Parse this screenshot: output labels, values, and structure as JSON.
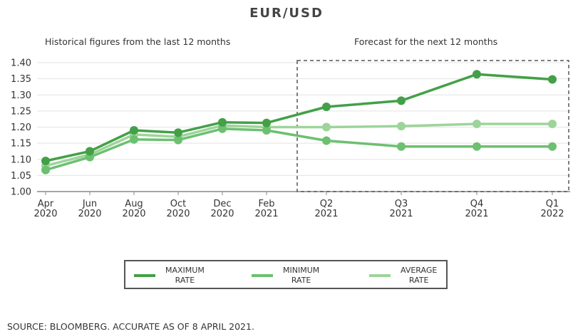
{
  "chart_data": {
    "type": "line",
    "title": "EUR/USD",
    "subtitles": {
      "historical": "Historical figures from the last 12 months",
      "forecast": "Forecast for the next 12 months"
    },
    "categories": [
      [
        "Apr",
        "2020"
      ],
      [
        "Jun",
        "2020"
      ],
      [
        "Aug",
        "2020"
      ],
      [
        "Oct",
        "2020"
      ],
      [
        "Dec",
        "2020"
      ],
      [
        "Feb",
        "2021"
      ],
      [
        "Q2",
        "2021"
      ],
      [
        "Q3",
        "2021"
      ],
      [
        "Q4",
        "2021"
      ],
      [
        "Q1",
        "2022"
      ]
    ],
    "y_ticks": [
      "1.00",
      "1.05",
      "1.10",
      "1.15",
      "1.20",
      "1.25",
      "1.30",
      "1.35",
      "1.40"
    ],
    "ylim": [
      1.0,
      1.4
    ],
    "grid": true,
    "series": [
      {
        "name": "MAXIMUM RATE",
        "label_lines": [
          "MAXIMUM",
          "RATE"
        ],
        "color": "#43a047",
        "values": [
          1.095,
          1.125,
          1.19,
          1.183,
          1.215,
          1.213,
          1.263,
          1.282,
          1.364,
          1.348
        ]
      },
      {
        "name": "MINIMUM RATE",
        "label_lines": [
          "MINIMUM",
          "RATE"
        ],
        "color": "#6cc070",
        "values": [
          1.067,
          1.107,
          1.162,
          1.16,
          1.195,
          1.19,
          1.158,
          1.14,
          1.14,
          1.14
        ]
      },
      {
        "name": "AVERAGE RATE",
        "label_lines": [
          "AVERAGE",
          "RATE"
        ],
        "color": "#9dd49a",
        "values": [
          1.08,
          1.115,
          1.177,
          1.17,
          1.205,
          1.2,
          1.2,
          1.203,
          1.21,
          1.21
        ]
      }
    ],
    "legend_position": "bottom"
  },
  "source": "SOURCE: BLOOMBERG. ACCURATE AS OF 8 APRIL 2021."
}
